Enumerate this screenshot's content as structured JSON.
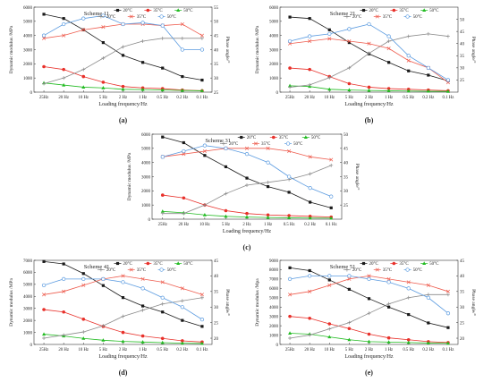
{
  "chart_data": [
    {
      "id": "a",
      "type": "line",
      "scheme": "Scheme 11",
      "panel_label": "(a)",
      "categories": [
        "25Hz",
        "20 Hz",
        "10 Hz",
        "5 Hz",
        "2 Hz",
        "1 Hz",
        "0.5 Hz",
        "0.2 Hz",
        "0.1 Hz"
      ],
      "xlabel": "Loading frequency/Hz",
      "ylabel": "Dynamic modulus /MPa",
      "ylabel2": "Phase angle/°",
      "ylim": [
        0,
        6000
      ],
      "yticks": [
        0,
        1000,
        2000,
        3000,
        4000,
        5000,
        6000
      ],
      "y2lim": [
        25,
        55
      ],
      "y2ticks": [
        25,
        30,
        35,
        40,
        45,
        50,
        55
      ],
      "modulus_series": [
        {
          "name": "20°C",
          "values": [
            5500,
            5200,
            4400,
            3500,
            2600,
            2100,
            1700,
            1100,
            850
          ]
        },
        {
          "name": "35°C",
          "values": [
            1800,
            1600,
            1100,
            700,
            400,
            300,
            250,
            150,
            100
          ]
        },
        {
          "name": "50°C",
          "values": [
            650,
            500,
            350,
            300,
            200,
            180,
            150,
            120,
            100
          ]
        }
      ],
      "phase_series": [
        {
          "name": "20°C",
          "values": [
            28,
            30,
            33,
            37,
            41,
            43,
            44,
            44,
            44
          ]
        },
        {
          "name": "35°C",
          "values": [
            44,
            45,
            47,
            48,
            49,
            49,
            48.5,
            49,
            45
          ]
        },
        {
          "name": "50°C",
          "values": [
            45,
            49,
            51,
            52,
            49,
            49.5,
            48.5,
            40,
            40
          ]
        }
      ]
    },
    {
      "id": "b",
      "type": "line",
      "scheme": "Scheme 21",
      "panel_label": "(b)",
      "categories": [
        "25Hz",
        "20 Hz",
        "10 Hz",
        "5 Hz",
        "2 Hz",
        "1 Hz",
        "0.5 Hz",
        "0.2 Hz",
        "0.1 Hz"
      ],
      "xlabel": "Loading frequency/Hz",
      "ylabel": "Dynamic modulus /MPa",
      "ylabel2": "Phase angle/°",
      "ylim": [
        0,
        6000
      ],
      "yticks": [
        0,
        1000,
        2000,
        3000,
        4000,
        5000,
        6000
      ],
      "y2lim": [
        20,
        55
      ],
      "y2ticks": [
        25,
        30,
        35,
        40,
        45,
        50
      ],
      "modulus_series": [
        {
          "name": "20°C",
          "values": [
            5300,
            5200,
            4400,
            3500,
            2700,
            2100,
            1500,
            1200,
            800
          ]
        },
        {
          "name": "35°C",
          "values": [
            1700,
            1600,
            1100,
            600,
            350,
            250,
            200,
            150,
            100
          ]
        },
        {
          "name": "50°C",
          "values": [
            450,
            400,
            200,
            150,
            120,
            100,
            80,
            60,
            50
          ]
        }
      ],
      "phase_series": [
        {
          "name": "20°C",
          "values": [
            22,
            23,
            26,
            30,
            36,
            41,
            43,
            44,
            43
          ]
        },
        {
          "name": "35°C",
          "values": [
            40,
            41,
            42,
            41,
            40,
            38,
            33,
            30,
            24
          ]
        },
        {
          "name": "50°C",
          "values": [
            41,
            43,
            44,
            46,
            48,
            43,
            35,
            30,
            25
          ]
        }
      ]
    },
    {
      "id": "c",
      "type": "line",
      "scheme": "Scheme 31",
      "panel_label": "(c)",
      "categories": [
        "25Hz",
        "20 Hz",
        "10 Hz",
        "5 Hz",
        "2 Hz",
        "1 Hz",
        "0.5 Hz",
        "0.2 Hz",
        "0.1 Hz"
      ],
      "xlabel": "Loading frequency/Hz",
      "ylabel": "Dynamic modulus /MPa",
      "ylabel2": "Phase angle/°",
      "ylim": [
        0,
        6000
      ],
      "yticks": [
        0,
        1000,
        2000,
        3000,
        4000,
        5000,
        6000
      ],
      "y2lim": [
        20,
        50
      ],
      "y2ticks": [
        25,
        30,
        35,
        40,
        45,
        50
      ],
      "modulus_series": [
        {
          "name": "20°C",
          "values": [
            5800,
            5400,
            4500,
            3700,
            2900,
            2300,
            1900,
            1200,
            800
          ]
        },
        {
          "name": "35°C",
          "values": [
            1700,
            1500,
            1000,
            600,
            400,
            300,
            250,
            200,
            150
          ]
        },
        {
          "name": "50°C",
          "values": [
            550,
            450,
            300,
            200,
            150,
            120,
            100,
            80,
            70
          ]
        }
      ],
      "phase_series": [
        {
          "name": "20°C",
          "values": [
            22,
            22,
            25,
            29,
            32,
            33,
            34,
            36,
            39
          ]
        },
        {
          "name": "35°C",
          "values": [
            42,
            43,
            44,
            45,
            45,
            45,
            44,
            42,
            41
          ]
        },
        {
          "name": "50°C",
          "values": [
            42,
            44,
            46,
            45,
            43,
            40,
            35,
            31,
            28
          ]
        }
      ]
    },
    {
      "id": "d",
      "type": "line",
      "scheme": "Scheme 41",
      "panel_label": "(d)",
      "categories": [
        "25Hz",
        "20 Hz",
        "10 Hz",
        "5 Hz",
        "2 Hz",
        "1 Hz",
        "0.5 Hz",
        "0.2 Hz",
        "0.1 Hz"
      ],
      "xlabel": "Loading frequency/Hz",
      "ylabel": "Dynamic modulus /MPa",
      "ylabel2": "Phase angle/°",
      "ylim": [
        0,
        7000
      ],
      "yticks": [
        0,
        1000,
        2000,
        3000,
        4000,
        5000,
        6000,
        7000
      ],
      "y2lim": [
        18,
        45
      ],
      "y2ticks": [
        20,
        25,
        30,
        35,
        40,
        45
      ],
      "modulus_series": [
        {
          "name": "20°C",
          "values": [
            6900,
            6700,
            5900,
            4900,
            3900,
            3200,
            2700,
            2000,
            1500
          ]
        },
        {
          "name": "35°C",
          "values": [
            2900,
            2700,
            2100,
            1500,
            1000,
            700,
            500,
            300,
            200
          ]
        },
        {
          "name": "50°C",
          "values": [
            850,
            700,
            500,
            350,
            250,
            200,
            150,
            100,
            80
          ]
        }
      ],
      "phase_series": [
        {
          "name": "20°C",
          "values": [
            20,
            21,
            22,
            24,
            27,
            29,
            31,
            32,
            33
          ]
        },
        {
          "name": "35°C",
          "values": [
            34,
            35,
            37,
            39,
            40,
            39,
            38,
            36,
            34
          ]
        },
        {
          "name": "50°C",
          "values": [
            37,
            39,
            39,
            39,
            38,
            36,
            33,
            30,
            26
          ]
        }
      ]
    },
    {
      "id": "e",
      "type": "line",
      "scheme": "Scheme 51",
      "panel_label": "(e)",
      "categories": [
        "25Hz",
        "20 Hz",
        "10 Hz",
        "5 Hz",
        "2 Hz",
        "1 Hz",
        "0.5 Hz",
        "0.2 Hz",
        "0.1 Hz"
      ],
      "xlabel": "Loading frequency/Hz",
      "ylabel": "Dynamic modulus /Mpa",
      "ylabel2": "Phase angle/°",
      "ylim": [
        0,
        9000
      ],
      "yticks": [
        0,
        1000,
        2000,
        3000,
        4000,
        5000,
        6000,
        7000,
        8000,
        9000
      ],
      "y2lim": [
        18,
        45
      ],
      "y2ticks": [
        20,
        25,
        30,
        35,
        40,
        45
      ],
      "modulus_series": [
        {
          "name": "20°C",
          "values": [
            8200,
            7900,
            6900,
            5900,
            4900,
            4000,
            3200,
            2300,
            1800
          ]
        },
        {
          "name": "35°C",
          "values": [
            3000,
            2800,
            2200,
            1700,
            1100,
            700,
            500,
            300,
            200
          ]
        },
        {
          "name": "50°C",
          "values": [
            1200,
            1100,
            800,
            500,
            300,
            250,
            200,
            150,
            120
          ]
        }
      ],
      "phase_series": [
        {
          "name": "20°C",
          "values": [
            20,
            21,
            23,
            25,
            28,
            31,
            33,
            34,
            34
          ]
        },
        {
          "name": "35°C",
          "values": [
            34,
            35,
            37,
            39,
            40,
            39,
            38,
            37,
            35
          ]
        },
        {
          "name": "50°C",
          "values": [
            39,
            40,
            40,
            40,
            39,
            38,
            36,
            33,
            28
          ]
        }
      ]
    }
  ],
  "legend": {
    "row1": [
      "20°C",
      "35°C",
      "50°C"
    ],
    "row2": [
      "20°C",
      "35°C",
      "50°C"
    ]
  },
  "colors": {
    "c20": "#1a1a1a",
    "c35": "#e8302a",
    "c50": "#22bb22",
    "p20": "#8a8a8a",
    "p35": "#ee5c4e",
    "p50": "#5b9be0"
  }
}
